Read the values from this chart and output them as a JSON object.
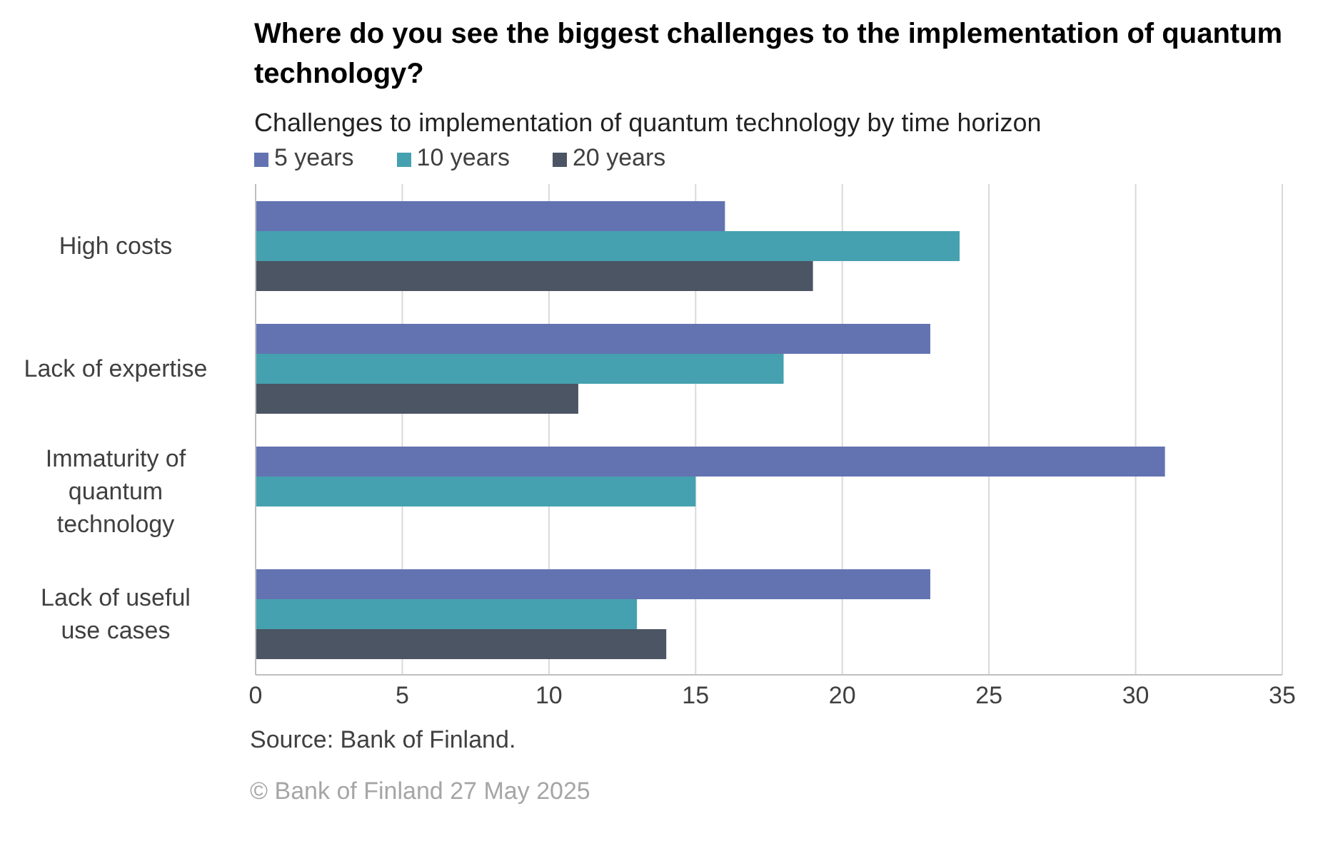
{
  "chart_data": {
    "type": "bar",
    "orientation": "horizontal",
    "title": "Where do you see the biggest challenges to the implementation of quantum technology?",
    "subtitle": "Challenges to implementation of quantum technology by time horizon",
    "categories": [
      "High costs",
      "Lack of expertise",
      "Immaturity of quantum technology",
      "Lack of useful use cases"
    ],
    "series": [
      {
        "name": "5 years",
        "color": "#6373b1",
        "values": [
          16,
          23,
          31,
          23
        ]
      },
      {
        "name": "10 years",
        "color": "#45a1b0",
        "values": [
          24,
          18,
          15,
          13
        ]
      },
      {
        "name": "20 years",
        "color": "#4b5563",
        "values": [
          19,
          11,
          0,
          14
        ]
      }
    ],
    "xlim": [
      0,
      35
    ],
    "xticks": [
      0,
      5,
      10,
      15,
      20,
      25,
      30,
      35
    ],
    "grid": "x",
    "legend": "top left",
    "annotations": [
      "Source: Bank of Finland.",
      "© Bank of Finland 27 May 2025"
    ]
  }
}
